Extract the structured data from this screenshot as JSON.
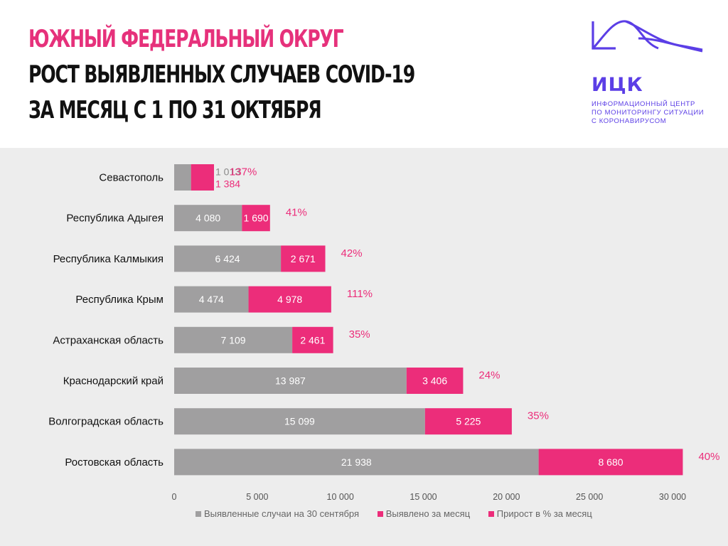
{
  "header": {
    "title_line1": "ЮЖНЫЙ ФЕДЕРАЛЬНЫЙ ОКРУГ",
    "title_line2": "РОСТ ВЫЯВЛЕННЫХ СЛУЧАЕВ COVID-19",
    "title_line3": "ЗА МЕСЯЦ С 1 ПО 31 ОКТЯБРЯ"
  },
  "logo": {
    "abbr": "ИЦК",
    "subtitle_line1": "ИНФОРМАЦИОННЫЙ ЦЕНТР",
    "subtitle_line2": "ПО МОНИТОРИНГУ СИТУАЦИИ",
    "subtitle_line3": "С КОРОНАВИРУСОМ"
  },
  "colors": {
    "accent_pink": "#ec2d7a",
    "title_pink": "#e6317b",
    "gray_bar": "#a09fa0",
    "brand_purple": "#5b3ee6"
  },
  "chart_data": {
    "type": "bar",
    "orientation": "horizontal",
    "stacked": true,
    "categories": [
      "Севастополь",
      "Республика Адыгея",
      "Республика Калмыкия",
      "Республика Крым",
      "Астраханская область",
      "Краснодарский край",
      "Волгоградская область",
      "Ростовская область"
    ],
    "series": [
      {
        "name": "Выявленные случаи на 30 сентября",
        "values": [
          1013,
          4080,
          6424,
          4474,
          7109,
          13987,
          15099,
          21938
        ],
        "labels": [
          "1 013",
          "4 080",
          "6 424",
          "4 474",
          "7 109",
          "13 987",
          "15 099",
          "21 938"
        ]
      },
      {
        "name": "Выявлено за месяц",
        "values": [
          1384,
          1690,
          2671,
          4978,
          2461,
          3406,
          5225,
          8680
        ],
        "labels": [
          "1 384",
          "1 690",
          "2 671",
          "4 978",
          "2 461",
          "3 406",
          "5 225",
          "8 680"
        ]
      }
    ],
    "growth_series": {
      "name": "Прирост в % за месяц",
      "values": [
        137,
        41,
        42,
        111,
        35,
        24,
        35,
        40
      ],
      "labels": [
        "137%",
        "41%",
        "42%",
        "111%",
        "35%",
        "24%",
        "35%",
        "40%"
      ]
    },
    "xlim": [
      0,
      30000
    ],
    "x_ticks": [
      0,
      5000,
      10000,
      15000,
      20000,
      25000,
      30000
    ],
    "x_tick_labels": [
      "0",
      "5 000",
      "10 000",
      "15 000",
      "20 000",
      "25 000",
      "30 000"
    ],
    "grid": false,
    "legend_position": "bottom",
    "title": "",
    "xlabel": "",
    "ylabel": ""
  }
}
